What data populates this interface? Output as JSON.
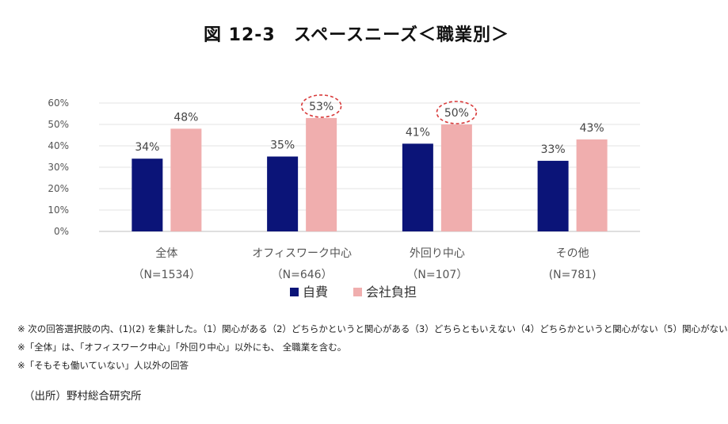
{
  "title": "図 12-3　スペースニーズ＜職業別＞",
  "chart_data": {
    "type": "bar",
    "title": "図 12-3　スペースニーズ＜職業別＞",
    "categories": [
      "全体",
      "オフィスワーク中心",
      "外回り中心",
      "その他"
    ],
    "sample_sizes": [
      "（N=1534）",
      "（N=646）",
      "（N=107）",
      "(N=781)"
    ],
    "series": [
      {
        "name": "自費",
        "values": [
          34,
          35,
          41,
          33
        ],
        "labels": [
          "34%",
          "35%",
          "41%",
          "33%"
        ],
        "color": "#0b1478"
      },
      {
        "name": "会社負担",
        "values": [
          48,
          53,
          50,
          43
        ],
        "labels": [
          "48%",
          "53%",
          "50%",
          "43%"
        ],
        "color": "#f0aeae"
      }
    ],
    "highlighted": [
      {
        "series": 1,
        "category": 1
      },
      {
        "series": 1,
        "category": 2
      }
    ],
    "highlight_color": "#d83a3a",
    "ylim": [
      0,
      60
    ],
    "yticks": [
      "0%",
      "10%",
      "20%",
      "30%",
      "40%",
      "50%",
      "60%"
    ],
    "ytick_values": [
      0,
      10,
      20,
      30,
      40,
      50,
      60
    ],
    "gridlines": true,
    "legend_position": "bottom-center",
    "xlabel": "",
    "ylabel": ""
  },
  "notes": [
    "※ 次の回答選択肢の内、(1)(2) を集計した。（1）関心がある（2）どちらかというと関心がある（3）どちらともいえない（4）どちらかというと関心がない（5）関心がない",
    "※「全体」は、「オフィスワーク中心」「外回り中心」以外にも、 全職業を含む。",
    "※「そもそも働いていない」人以外の回答"
  ],
  "source": "（出所）野村総合研究所"
}
